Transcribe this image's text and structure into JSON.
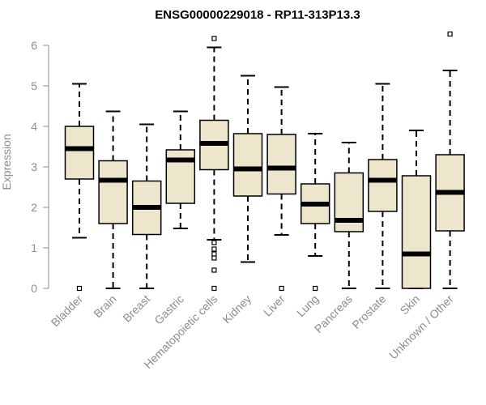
{
  "chart_data": {
    "type": "boxplot",
    "title": "ENSG00000229018 - RP11-313P13.3",
    "xlabel": "",
    "ylabel": "Expression",
    "ylim": [
      0,
      6
    ],
    "yticks": [
      0,
      1,
      2,
      3,
      4,
      5,
      6
    ],
    "grid": false,
    "colors": {
      "box_fill": "#ede6cd",
      "stroke": "#000000",
      "axis": "#8c8c8c"
    },
    "categories": [
      "Bladder",
      "Brain",
      "Breast",
      "Gastric",
      "Hematopoietic cells",
      "Kidney",
      "Liver",
      "Lung",
      "Pancreas",
      "Prostate",
      "Skin",
      "Unknown / Other"
    ],
    "boxes": [
      {
        "category": "Bladder",
        "min": 1.25,
        "q1": 2.7,
        "median": 3.45,
        "q3": 4.0,
        "max": 5.05,
        "outliers": [
          0.0
        ]
      },
      {
        "category": "Brain",
        "min": 0.0,
        "q1": 1.6,
        "median": 2.67,
        "q3": 3.15,
        "max": 4.37,
        "outliers": []
      },
      {
        "category": "Breast",
        "min": 0.0,
        "q1": 1.33,
        "median": 2.0,
        "q3": 2.65,
        "max": 4.05,
        "outliers": []
      },
      {
        "category": "Gastric",
        "min": 1.48,
        "q1": 2.1,
        "median": 3.17,
        "q3": 3.42,
        "max": 4.37,
        "outliers": []
      },
      {
        "category": "Hematopoietic cells",
        "min": 1.2,
        "q1": 2.93,
        "median": 3.58,
        "q3": 4.15,
        "max": 5.95,
        "outliers": [
          6.17,
          1.13,
          0.97,
          0.85,
          0.75,
          0.45,
          0.0
        ]
      },
      {
        "category": "Kidney",
        "min": 0.65,
        "q1": 2.28,
        "median": 2.95,
        "q3": 3.82,
        "max": 5.25,
        "outliers": []
      },
      {
        "category": "Liver",
        "min": 1.32,
        "q1": 2.33,
        "median": 2.97,
        "q3": 3.8,
        "max": 4.97,
        "outliers": [
          0.0
        ]
      },
      {
        "category": "Lung",
        "min": 0.8,
        "q1": 1.6,
        "median": 2.08,
        "q3": 2.58,
        "max": 3.82,
        "outliers": [
          0.0
        ]
      },
      {
        "category": "Pancreas",
        "min": 0.0,
        "q1": 1.4,
        "median": 1.68,
        "q3": 2.85,
        "max": 3.6,
        "outliers": []
      },
      {
        "category": "Prostate",
        "min": 0.0,
        "q1": 1.9,
        "median": 2.67,
        "q3": 3.18,
        "max": 5.05,
        "outliers": []
      },
      {
        "category": "Skin",
        "min": 0.0,
        "q1": 0.0,
        "median": 0.85,
        "q3": 2.78,
        "max": 3.9,
        "outliers": []
      },
      {
        "category": "Unknown / Other",
        "min": 0.0,
        "q1": 1.42,
        "median": 2.37,
        "q3": 3.3,
        "max": 5.38,
        "outliers": [
          6.28
        ]
      }
    ]
  }
}
